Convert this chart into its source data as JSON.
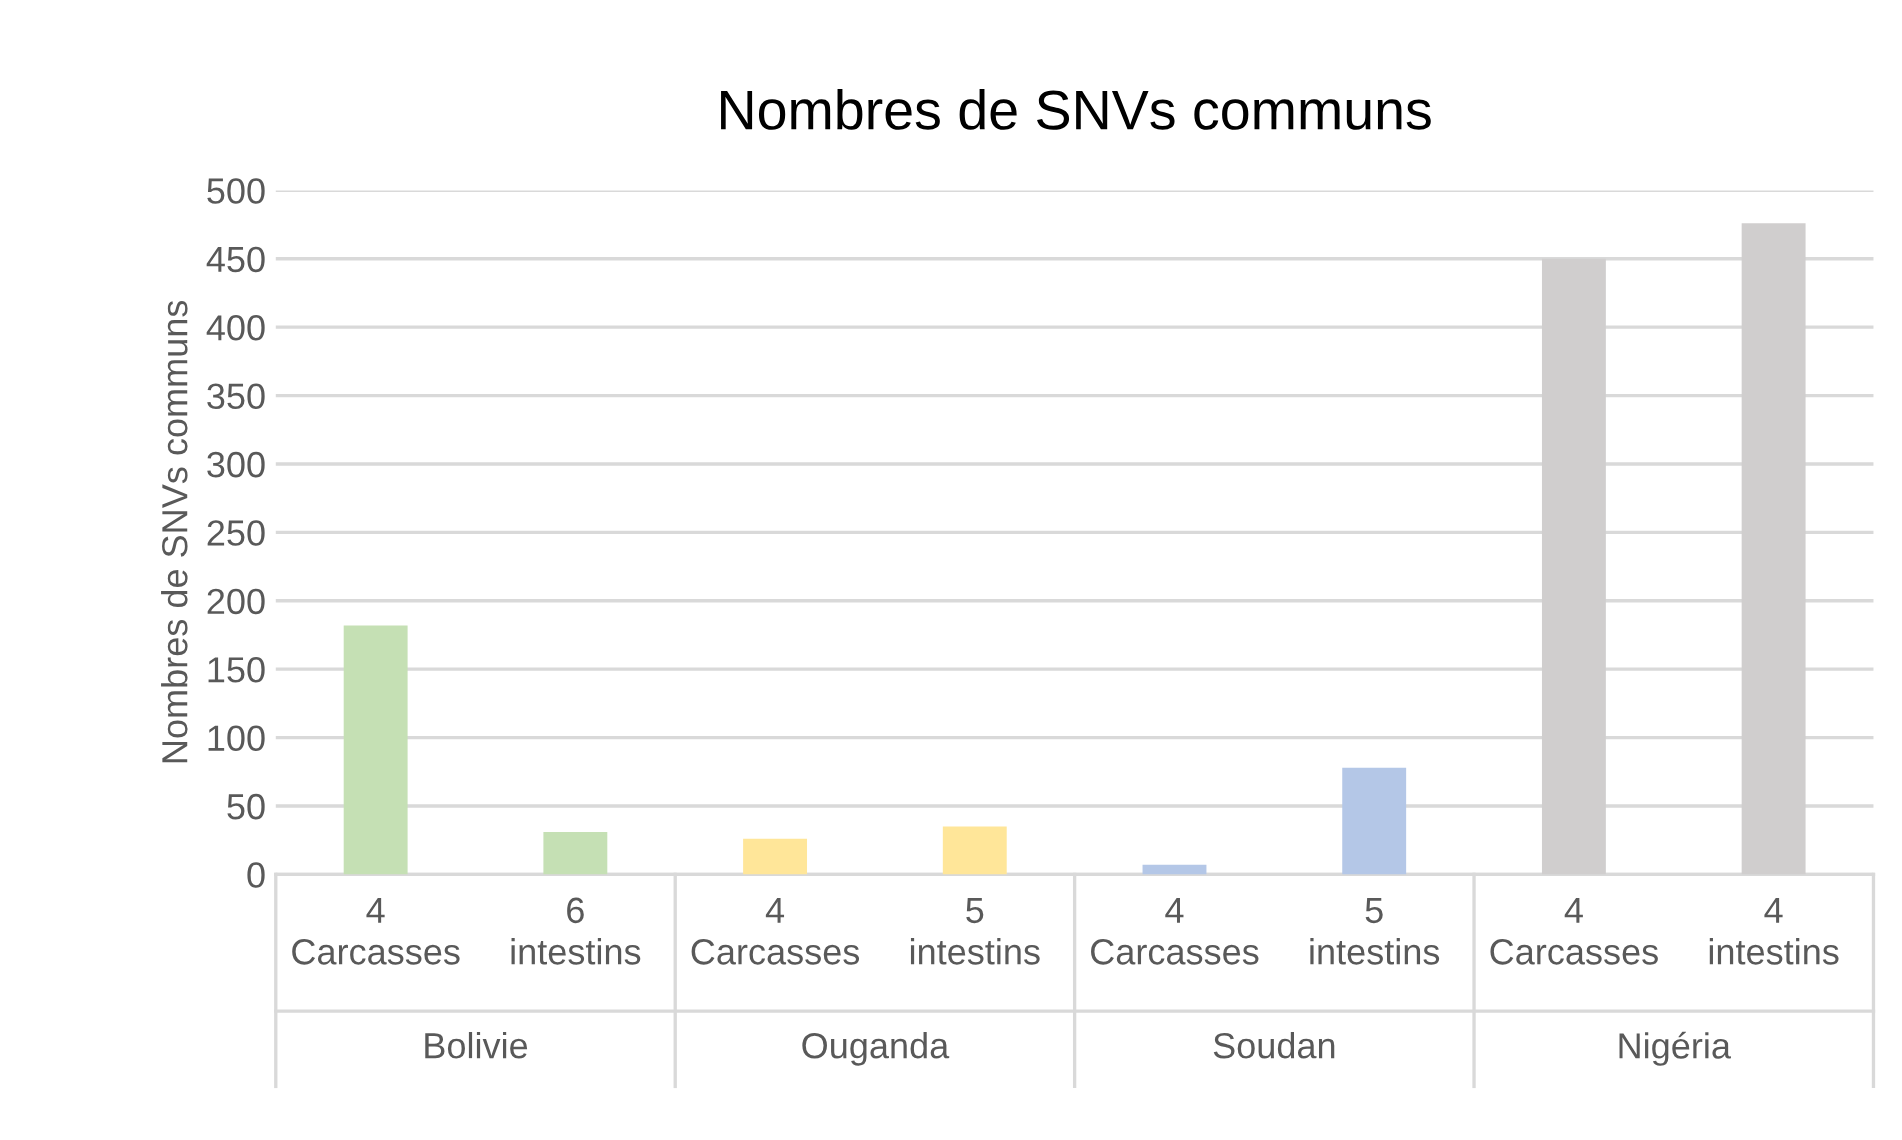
{
  "chart_data": {
    "type": "bar",
    "title": "Nombres de SNVs communs",
    "ylabel": "Nombres de SNVs communs",
    "categories": [
      "4\nCarcasses",
      "6\nintestins",
      "4\nCarcasses",
      "5\nintestins",
      "4\nCarcasses",
      "5\nintestins",
      "4\nCarcasses",
      "4\nintestins"
    ],
    "values": [
      182,
      31,
      26,
      35,
      7,
      78,
      450,
      476
    ],
    "colors": [
      "#c5e0b4",
      "#c5e0b4",
      "#ffe699",
      "#ffe699",
      "#b4c7e7",
      "#b4c7e7",
      "#d0cece",
      "#d0cece"
    ],
    "annotations": [
      "Bolivie",
      "Ouganda",
      "Soudan",
      "Nigéria"
    ],
    "ylim": [
      0,
      500
    ],
    "yticks": [
      0,
      50,
      100,
      150,
      200,
      250,
      300,
      350,
      400,
      450,
      500
    ],
    "grid": "y"
  }
}
